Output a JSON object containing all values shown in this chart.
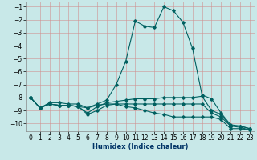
{
  "xlabel": "Humidex (Indice chaleur)",
  "background_color": "#c8e8e8",
  "grid_color": "#b0c8c8",
  "line_color": "#006060",
  "xlim": [
    -0.5,
    23.5
  ],
  "ylim": [
    -10.6,
    -0.6
  ],
  "xticks": [
    0,
    1,
    2,
    3,
    4,
    5,
    6,
    7,
    8,
    9,
    10,
    11,
    12,
    13,
    14,
    15,
    16,
    17,
    18,
    19,
    20,
    21,
    22,
    23
  ],
  "yticks": [
    -10,
    -9,
    -8,
    -7,
    -6,
    -5,
    -4,
    -3,
    -2,
    -1
  ],
  "lines": [
    {
      "x": [
        0,
        1,
        2,
        3,
        4,
        5,
        6,
        7,
        8,
        9,
        10,
        11,
        12,
        13,
        14,
        15,
        16,
        17,
        18,
        19,
        20,
        21,
        22,
        23
      ],
      "y": [
        -8.0,
        -8.8,
        -8.4,
        -8.4,
        -8.5,
        -8.5,
        -8.8,
        -8.5,
        -8.2,
        -7.0,
        -5.2,
        -2.1,
        -2.5,
        -2.6,
        -1.0,
        -1.3,
        -2.2,
        -4.2,
        -7.8,
        -8.1,
        -9.2,
        -10.1,
        -10.2,
        -10.4
      ]
    },
    {
      "x": [
        0,
        1,
        2,
        3,
        4,
        5,
        6,
        7,
        8,
        9,
        10,
        11,
        12,
        13,
        14,
        15,
        16,
        17,
        18,
        19,
        20,
        21,
        22,
        23
      ],
      "y": [
        -8.0,
        -8.8,
        -8.5,
        -8.6,
        -8.6,
        -8.7,
        -9.2,
        -8.7,
        -8.4,
        -8.3,
        -8.2,
        -8.1,
        -8.1,
        -8.1,
        -8.0,
        -8.0,
        -8.0,
        -8.0,
        -7.9,
        -9.0,
        -9.3,
        -10.2,
        -10.2,
        -10.4
      ]
    },
    {
      "x": [
        0,
        1,
        2,
        3,
        4,
        5,
        6,
        7,
        8,
        9,
        10,
        11,
        12,
        13,
        14,
        15,
        16,
        17,
        18,
        19,
        20,
        21,
        22,
        23
      ],
      "y": [
        -8.0,
        -8.8,
        -8.5,
        -8.6,
        -8.6,
        -8.7,
        -9.3,
        -9.0,
        -8.6,
        -8.5,
        -8.5,
        -8.5,
        -8.5,
        -8.5,
        -8.5,
        -8.5,
        -8.5,
        -8.5,
        -8.5,
        -9.2,
        -9.5,
        -10.2,
        -10.3,
        -10.5
      ]
    },
    {
      "x": [
        0,
        1,
        2,
        3,
        4,
        5,
        6,
        7,
        8,
        9,
        10,
        11,
        12,
        13,
        14,
        15,
        16,
        17,
        18,
        19,
        20,
        21,
        22,
        23
      ],
      "y": [
        -8.0,
        -8.8,
        -8.5,
        -8.6,
        -8.6,
        -8.7,
        -8.8,
        -8.6,
        -8.5,
        -8.5,
        -8.7,
        -8.8,
        -9.0,
        -9.2,
        -9.3,
        -9.5,
        -9.5,
        -9.5,
        -9.5,
        -9.5,
        -9.7,
        -10.4,
        -10.4,
        -10.5
      ]
    }
  ]
}
